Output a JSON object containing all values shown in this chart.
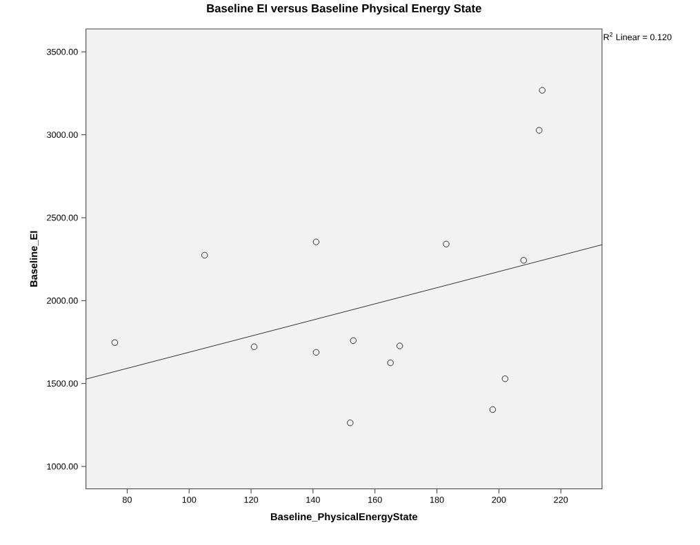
{
  "chart_data": {
    "type": "scatter",
    "title": "Baseline EI versus Baseline Physical Energy State",
    "xlabel": "Baseline_PhysicalEnergyState",
    "ylabel": "Baseline_EI",
    "annotations": [
      "R$^{2}$ Linear = 0.120"
    ],
    "x": [
      76,
      105,
      121,
      141,
      141,
      152,
      153,
      165,
      168,
      183,
      198,
      202,
      208,
      213,
      214
    ],
    "series": [
      {
        "color": "#000000",
        "marker": "circle",
        "values": [
          1747,
          2274,
          1722,
          2354,
          1688,
          1263,
          1759,
          1625,
          1727,
          2341,
          1343,
          1529,
          2243,
          3027,
          3268
        ]
      },
      {
        "type": "line",
        "color": "#000000",
        "x": [
          66.7,
          233.3
        ],
        "values": [
          1527,
          2337
        ]
      }
    ],
    "xlim": [
      66.7,
      233.3
    ],
    "ylim": [
      865,
      3638
    ],
    "xticks": [
      80,
      100,
      120,
      140,
      160,
      180,
      200,
      220
    ],
    "yticks": [
      {
        "value": 1000,
        "label": "1000.00"
      },
      {
        "value": 1500,
        "label": "1500.00"
      },
      {
        "value": 2000,
        "label": "2000.00"
      },
      {
        "value": 2500,
        "label": "2500.00"
      },
      {
        "value": 3000,
        "label": "3000.00"
      },
      {
        "value": 3500,
        "label": "3500.00"
      }
    ]
  }
}
